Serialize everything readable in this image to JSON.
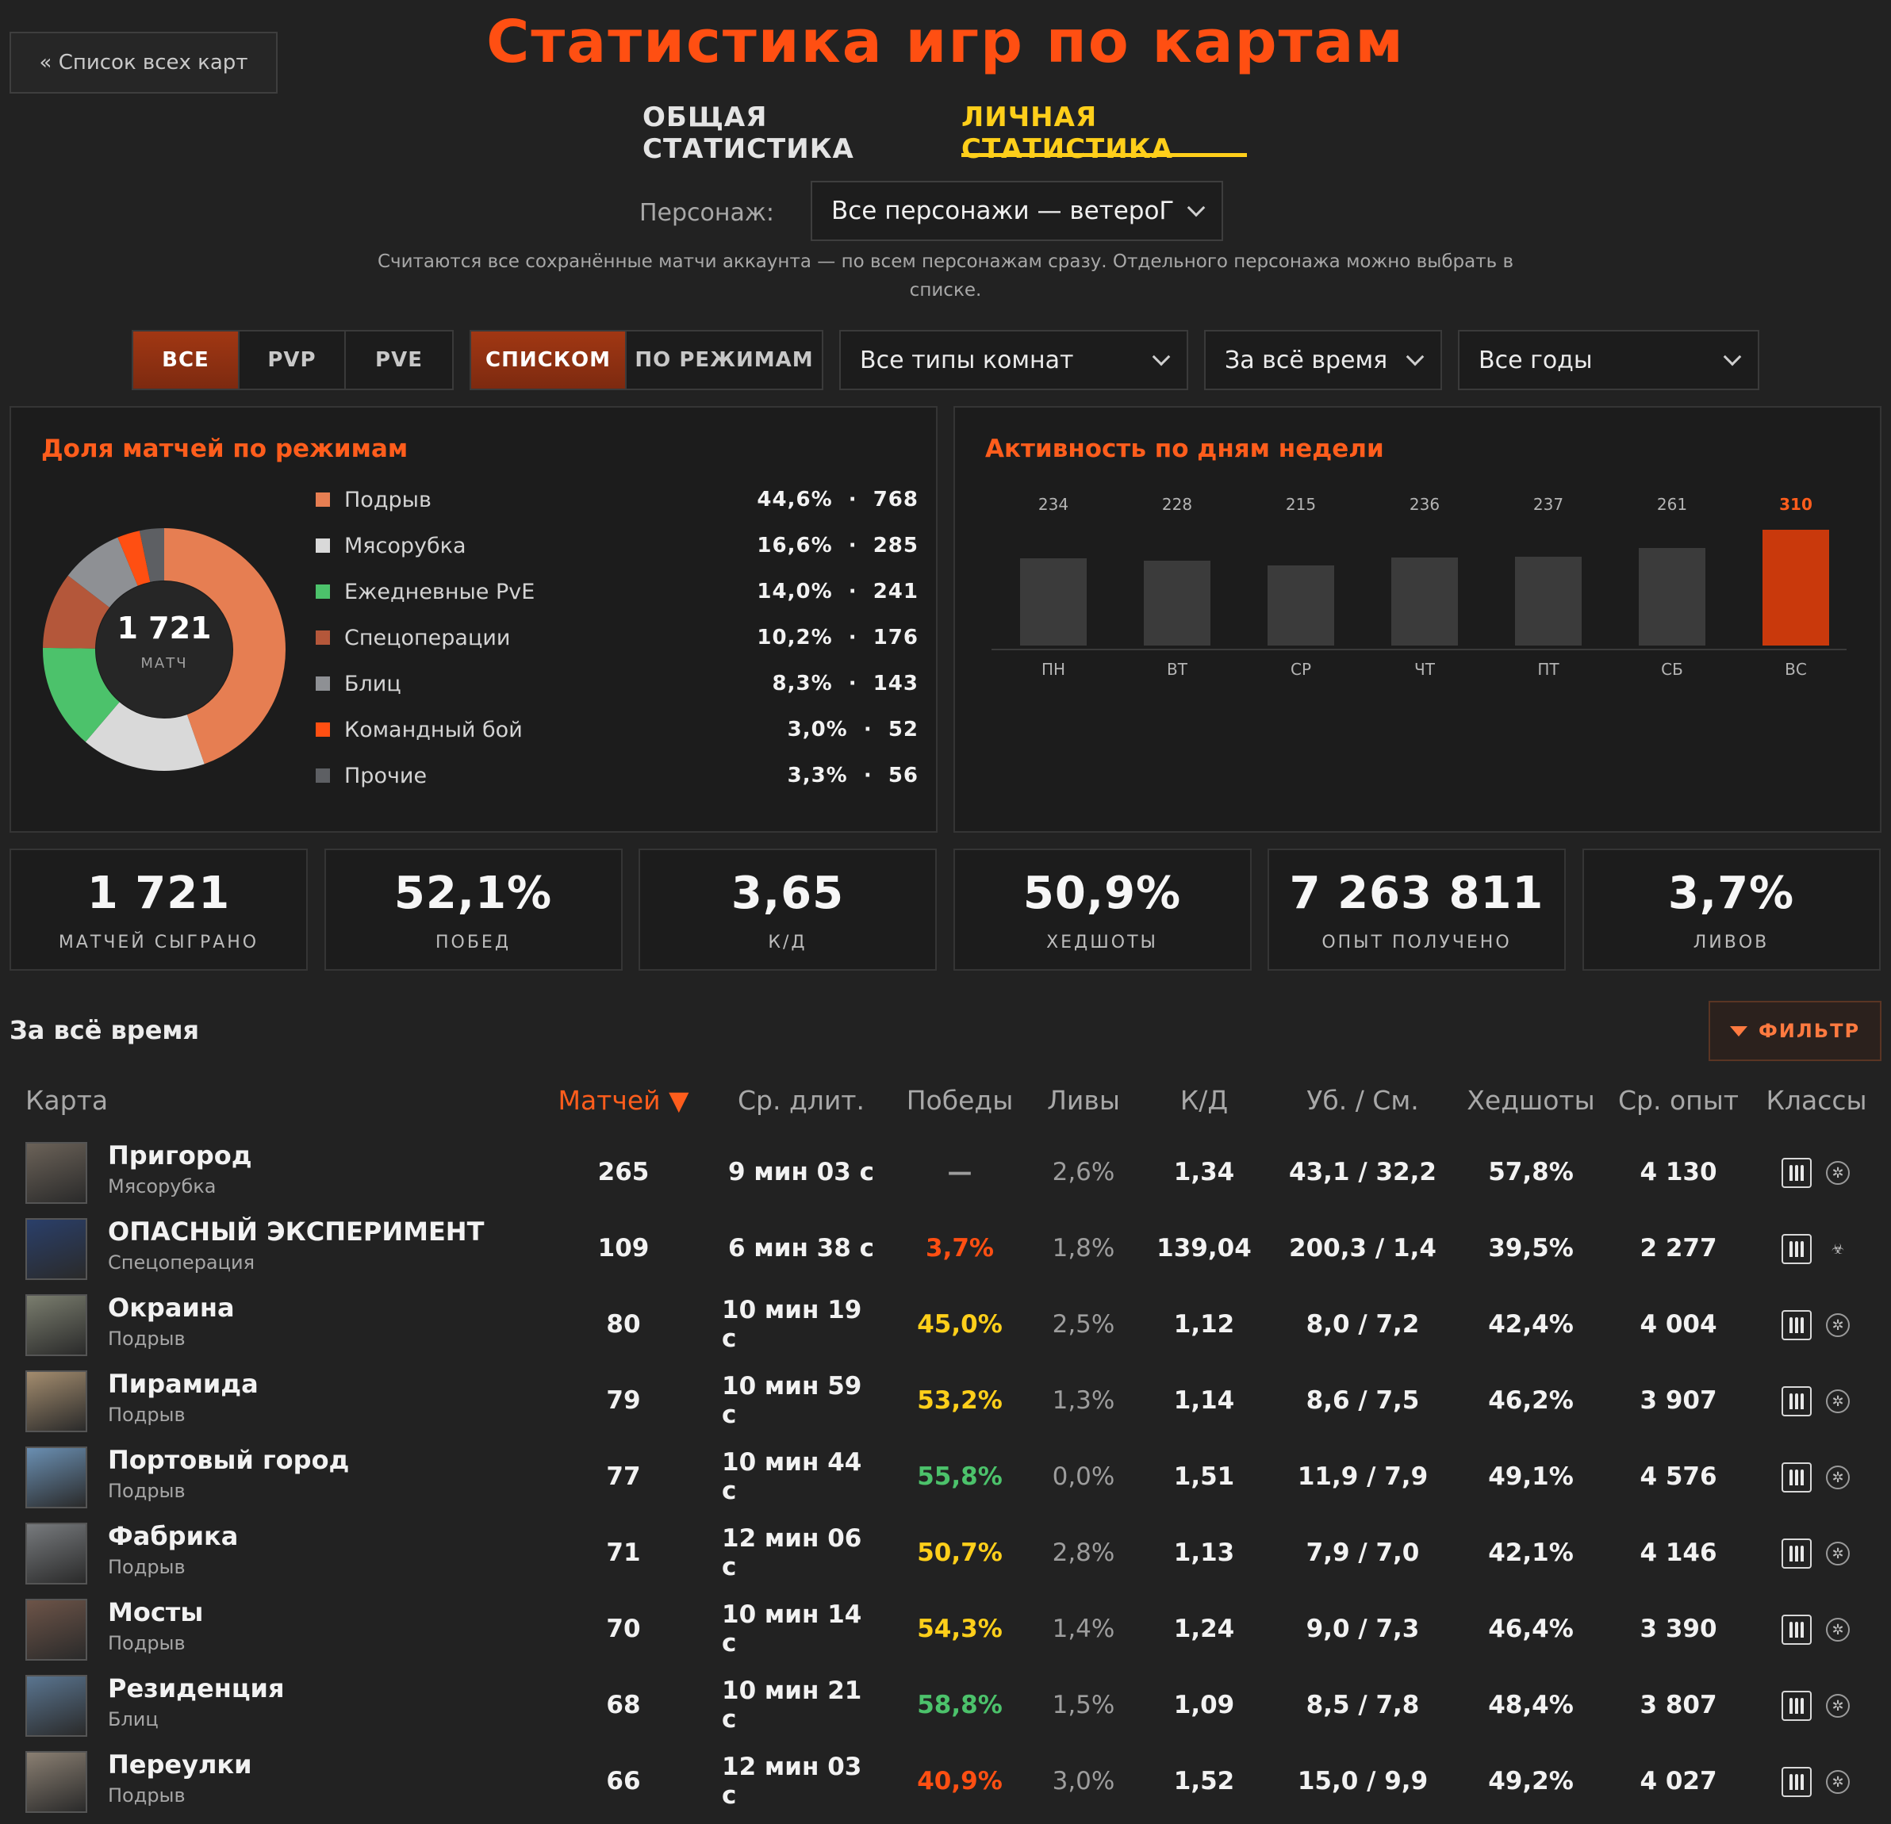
{
  "header": {
    "back_label": "« Список всех карт",
    "title": "Статистика игр по картам",
    "tabs": [
      "ОБЩАЯ СТАТИСТИКА",
      "ЛИЧНАЯ СТАТИСТИКА"
    ],
    "active_tab": "ЛИЧНАЯ СТАТИСТИКА"
  },
  "character": {
    "label": "Персонаж:",
    "selected": "Все персонажи — ветероГ",
    "note": "Считаются все сохранённые матчи аккаунта — по всем персонажам сразу. Отдельного персонажа можно выбрать в списке."
  },
  "filters": {
    "mode": [
      "ВСЕ",
      "PVP",
      "PVE"
    ],
    "mode_active": "ВСЕ",
    "view": [
      "СПИСКОМ",
      "ПО РЕЖИМАМ"
    ],
    "view_active": "СПИСКОМ",
    "room_type": "Все типы комнат",
    "period": "За всё время",
    "years": "Все годы"
  },
  "modes_panel": {
    "title": "Доля матчей по режимам",
    "total": "1 721",
    "total_label": "МАТЧ",
    "items": [
      {
        "name": "Подрыв",
        "pct": "44,6%",
        "count": "768",
        "share": 44.6,
        "color": "#e67e52"
      },
      {
        "name": "Мясорубка",
        "pct": "16,6%",
        "count": "285",
        "share": 16.6,
        "color": "#d9d9d9"
      },
      {
        "name": "Ежедневные PvE",
        "pct": "14,0%",
        "count": "241",
        "share": 14.0,
        "color": "#4cc26b"
      },
      {
        "name": "Спецоперации",
        "pct": "10,2%",
        "count": "176",
        "share": 10.2,
        "color": "#b4573a"
      },
      {
        "name": "Блиц",
        "pct": "8,3%",
        "count": "143",
        "share": 8.3,
        "color": "#8e9094"
      },
      {
        "name": "Командный бой",
        "pct": "3,0%",
        "count": "52",
        "share": 3.0,
        "color": "#ff4f12"
      },
      {
        "name": "Прочие",
        "pct": "3,3%",
        "count": "56",
        "share": 3.3,
        "color": "#5d5f63"
      }
    ]
  },
  "week_panel": {
    "title": "Активность по дням недели",
    "days": [
      "ПН",
      "ВТ",
      "СР",
      "ЧТ",
      "ПТ",
      "СБ",
      "ВС"
    ],
    "values": [
      234,
      228,
      215,
      236,
      237,
      261,
      310
    ],
    "highlight_index": 6,
    "bar_color": "#3b3b3b",
    "highlight_color": "#c9390c"
  },
  "kpis": [
    {
      "value": "1 721",
      "label": "МАТЧЕЙ СЫГРАНО"
    },
    {
      "value": "52,1%",
      "label": "ПОБЕД"
    },
    {
      "value": "3,65",
      "label": "К/Д"
    },
    {
      "value": "50,9%",
      "label": "ХЕДШОТЫ"
    },
    {
      "value": "7 263 811",
      "label": "ОПЫТ ПОЛУЧЕНО"
    },
    {
      "value": "3,7%",
      "label": "ЛИВОВ"
    }
  ],
  "table": {
    "period_title": "За всё время",
    "filter_label": "ФИЛЬТР",
    "columns": [
      "Карта",
      "Матчей ▼",
      "Ср. длит.",
      "Победы",
      "Ливы",
      "К/Д",
      "Уб. / См.",
      "Хедшоты",
      "Ср. опыт",
      "Классы"
    ],
    "sorted_column": "Матчей ▼",
    "rows": [
      {
        "name": "Пригород",
        "mode": "Мясорубка",
        "matches": "265",
        "duration": "9 мин 03 с",
        "wins": "—",
        "wins_color": "#9d9d9d",
        "leaves": "2,6%",
        "kd": "1,34",
        "ks": "43,1 / 32,2",
        "hs": "57,8%",
        "xp": "4 130",
        "thumb": "#6b6258",
        "class_b": "gear-icon"
      },
      {
        "name": "ОПАСНЫЙ ЭКСПЕРИМЕНТ",
        "mode": "Спецоперация",
        "matches": "109",
        "duration": "6 мин 38 с",
        "wins": "3,7%",
        "wins_color": "#ff4f12",
        "leaves": "1,8%",
        "kd": "139,04",
        "ks": "200,3 / 1,4",
        "hs": "39,5%",
        "xp": "2 277",
        "thumb": "#2a3f6a",
        "class_b": "biohazard-icon"
      },
      {
        "name": "Окраина",
        "mode": "Подрыв",
        "matches": "80",
        "duration": "10 мин 19 с",
        "wins": "45,0%",
        "wins_color": "#ffcf1a",
        "leaves": "2,5%",
        "kd": "1,12",
        "ks": "8,0 / 7,2",
        "hs": "42,4%",
        "xp": "4 004",
        "thumb": "#7a7d6e",
        "class_b": "gear-icon"
      },
      {
        "name": "Пирамида",
        "mode": "Подрыв",
        "matches": "79",
        "duration": "10 мин 59 с",
        "wins": "53,2%",
        "wins_color": "#ffcf1a",
        "leaves": "1,3%",
        "kd": "1,14",
        "ks": "8,6 / 7,5",
        "hs": "46,2%",
        "xp": "3 907",
        "thumb": "#a38c6e",
        "class_b": "gear-icon"
      },
      {
        "name": "Портовый город",
        "mode": "Подрыв",
        "matches": "77",
        "duration": "10 мин 44 с",
        "wins": "55,8%",
        "wins_color": "#4cc26b",
        "leaves": "0,0%",
        "kd": "1,51",
        "ks": "11,9 / 7,9",
        "hs": "49,1%",
        "xp": "4 576",
        "thumb": "#6a8fb2",
        "class_b": "gear-icon"
      },
      {
        "name": "Фабрика",
        "mode": "Подрыв",
        "matches": "71",
        "duration": "12 мин 06 с",
        "wins": "50,7%",
        "wins_color": "#ffcf1a",
        "leaves": "2,8%",
        "kd": "1,13",
        "ks": "7,9 / 7,0",
        "hs": "42,1%",
        "xp": "4 146",
        "thumb": "#777a7d",
        "class_b": "gear-icon"
      },
      {
        "name": "Мосты",
        "mode": "Подрыв",
        "matches": "70",
        "duration": "10 мин 14 с",
        "wins": "54,3%",
        "wins_color": "#ffcf1a",
        "leaves": "1,4%",
        "kd": "1,24",
        "ks": "9,0 / 7,3",
        "hs": "46,4%",
        "xp": "3 390",
        "thumb": "#6d5448",
        "class_b": "gear-icon"
      },
      {
        "name": "Резиденция",
        "mode": "Блиц",
        "matches": "68",
        "duration": "10 мин 21 с",
        "wins": "58,8%",
        "wins_color": "#4cc26b",
        "leaves": "1,5%",
        "kd": "1,09",
        "ks": "8,5 / 7,8",
        "hs": "48,4%",
        "xp": "3 807",
        "thumb": "#5a7590",
        "class_b": "gear-icon"
      },
      {
        "name": "Переулки",
        "mode": "Подрыв",
        "matches": "66",
        "duration": "12 мин 03 с",
        "wins": "40,9%",
        "wins_color": "#ff4f12",
        "leaves": "3,0%",
        "kd": "1,52",
        "ks": "15,0 / 9,9",
        "hs": "49,2%",
        "xp": "4 027",
        "thumb": "#8a7f72",
        "class_b": "gear-icon"
      }
    ]
  }
}
